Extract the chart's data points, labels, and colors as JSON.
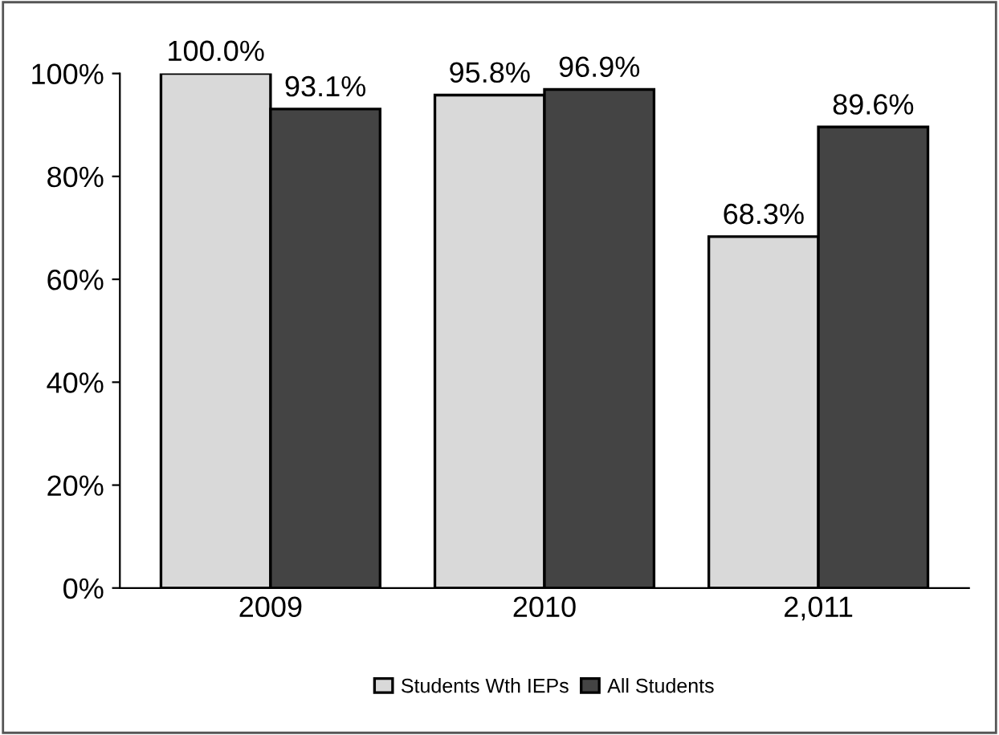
{
  "chart_data": {
    "type": "bar",
    "categories": [
      "2009",
      "2010",
      "2,011"
    ],
    "series": [
      {
        "name": "Students Wth IEPs",
        "color": "#d9d9d9",
        "values": [
          100.0,
          95.8,
          68.3
        ],
        "value_labels": [
          "100.0%",
          "95.8%",
          "68.3%"
        ]
      },
      {
        "name": "All Students",
        "color": "#444444",
        "values": [
          93.1,
          96.9,
          89.6
        ],
        "value_labels": [
          "93.1%",
          "96.9%",
          "89.6%"
        ]
      }
    ],
    "ylim": [
      0,
      100
    ],
    "yticks": [
      {
        "value": 0,
        "label": "0%"
      },
      {
        "value": 20,
        "label": "20%"
      },
      {
        "value": 40,
        "label": "40%"
      },
      {
        "value": 60,
        "label": "60%"
      },
      {
        "value": 80,
        "label": "80%"
      },
      {
        "value": 100,
        "label": "100%"
      }
    ],
    "grid": false,
    "legend": "bottom"
  }
}
